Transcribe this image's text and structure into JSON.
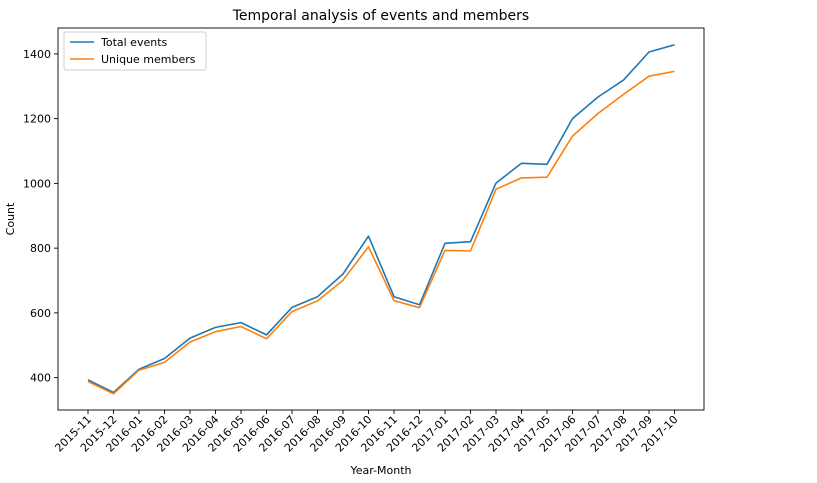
{
  "chart_data": {
    "type": "line",
    "title": "Temporal analysis of events and members",
    "xlabel": "Year-Month",
    "ylabel": "Count",
    "categories": [
      "2015-11",
      "2015-12",
      "2016-01",
      "2016-02",
      "2016-03",
      "2016-04",
      "2016-05",
      "2016-06",
      "2016-07",
      "2016-08",
      "2016-09",
      "2016-10",
      "2016-11",
      "2016-12",
      "2017-01",
      "2017-02",
      "2017-03",
      "2017-04",
      "2017-05",
      "2017-06",
      "2017-07",
      "2017-08",
      "2017-09",
      "2017-10"
    ],
    "series": [
      {
        "name": "Total events",
        "color": "#1f77b4",
        "values": [
          393,
          354,
          426,
          459,
          522,
          555,
          570,
          532,
          617,
          650,
          720,
          837,
          650,
          625,
          815,
          820,
          1001,
          1062,
          1059,
          1200,
          1267,
          1319,
          1406,
          1428
        ]
      },
      {
        "name": "Unique members",
        "color": "#ff7f0e",
        "values": [
          388,
          350,
          423,
          447,
          510,
          542,
          558,
          520,
          604,
          637,
          701,
          804,
          638,
          616,
          793,
          791,
          982,
          1017,
          1019,
          1146,
          1216,
          1275,
          1331,
          1346
        ]
      }
    ],
    "ylim": [
      300,
      1480
    ],
    "yticks": [
      400,
      600,
      800,
      1000,
      1200,
      1400
    ],
    "legend": "top-left",
    "grid": false
  }
}
